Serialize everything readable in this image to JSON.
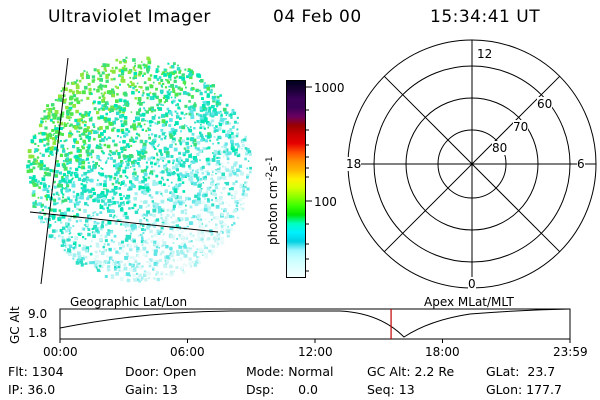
{
  "header": {
    "title": "Ultraviolet Imager",
    "date": "04 Feb 00",
    "time": "15:34:41 UT"
  },
  "colorbar": {
    "label_main": "photon cm",
    "label_sup1": "-2",
    "label_s": "s",
    "label_sup2": "-1",
    "tick_top": "1000",
    "tick_mid": "100",
    "colors": [
      "#00001e",
      "#1a0035",
      "#3a0058",
      "#3a0058",
      "#6a0060",
      "#9a0000",
      "#c80000",
      "#e60000",
      "#ff5000",
      "#ff9000",
      "#ffb800",
      "#fff000",
      "#d8ff00",
      "#8cff00",
      "#3cff00",
      "#00e600",
      "#00ffc0",
      "#00f0ff",
      "#00d0e0",
      "#9ff7ff",
      "#c8ffff",
      "#e0ffff",
      "#f2ffff"
    ]
  },
  "polar_plot": {
    "mlt_top": "12",
    "mlt_left": "18",
    "mlt_right": "6",
    "mlt_bottom": "0",
    "lat_labels": [
      "80",
      "70",
      "60"
    ]
  },
  "orbit_panel": {
    "left_label": "Geographic Lat/Lon",
    "right_label": "Apex MLat/MLT",
    "axis_title": "GC Alt",
    "y_ticks": [
      "9.0",
      "1.8"
    ],
    "x_ticks": [
      "00:00",
      "06:00",
      "12:00",
      "18:00",
      "23:59"
    ],
    "marker_hour": 15.58
  },
  "info": {
    "flt": "Flt: 1304",
    "ip": "IP: 36.0",
    "door": "Door: Open",
    "gain": "Gain: 13",
    "mode": "Mode: Normal",
    "dsp": "Dsp:      0.0",
    "gcalt": "GC Alt: 2.2 Re",
    "seq": "Seq: 13",
    "glat": "GLat:  23.7",
    "glon": "GLon: 177.7"
  }
}
